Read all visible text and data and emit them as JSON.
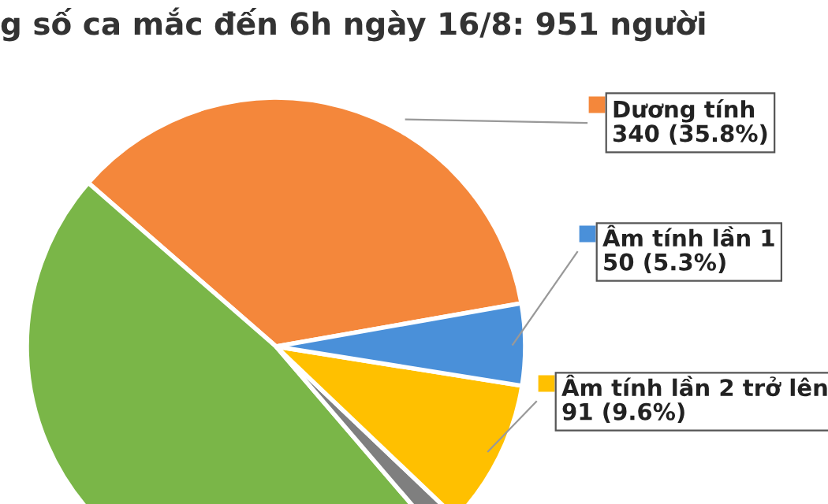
{
  "chart_data": {
    "type": "pie",
    "title": "g số ca mắc đến 6h ngày 16/8: 951 người",
    "categories": [
      "Dương tính",
      null,
      null,
      "Âm tính lần 2 trở lên",
      "Âm tính lần 1"
    ],
    "values": [
      35.8,
      47.7,
      1.6,
      9.6,
      5.3
    ],
    "value_labels": [
      "340 (35.8%)",
      null,
      null,
      "91 (9.6%)",
      "50 (5.3%)"
    ],
    "legend": "right",
    "colors": [
      "#f4873b",
      "#7ab648",
      "#7f7f7f",
      "#ffc000",
      "#4a90d9"
    ]
  }
}
